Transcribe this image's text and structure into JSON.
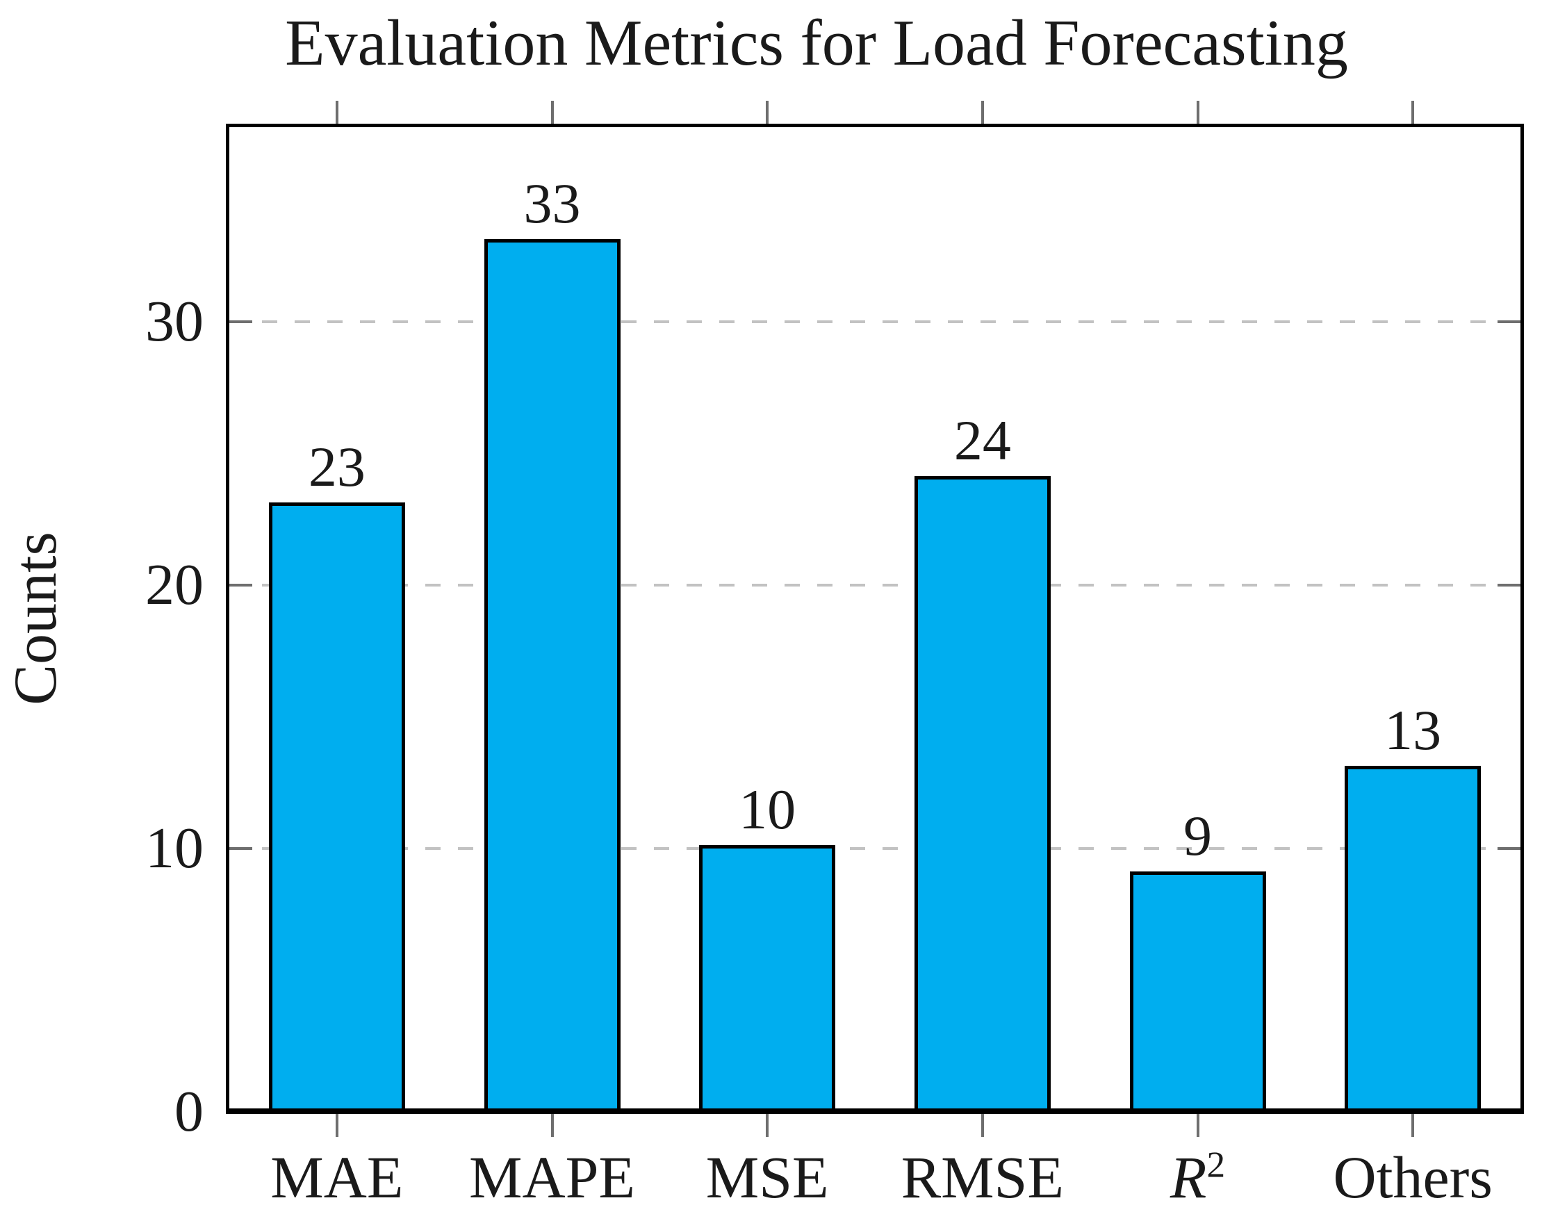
{
  "chart_data": {
    "type": "bar",
    "title": "Evaluation Metrics for Load Forecasting",
    "xlabel": "",
    "ylabel": "Counts",
    "categories": [
      "MAE",
      "MAPE",
      "MSE",
      "RMSE",
      "R²",
      "Others"
    ],
    "values": [
      23,
      33,
      10,
      24,
      9,
      13
    ],
    "bar_labels": [
      "23",
      "33",
      "10",
      "24",
      "9",
      "13"
    ],
    "yticks": [
      0,
      10,
      20,
      30
    ],
    "ylim": [
      0,
      37.2
    ],
    "grid": "horizontal dashed gridlines at y ticks",
    "legend": "none",
    "colors": {
      "bar_fill": "#00AEEF",
      "bar_border": "#000000",
      "grid": "#c2c2c2",
      "tick": "#6e6e6e",
      "frame": "#000000",
      "text": "#1a1a1a",
      "background": "#ffffff"
    }
  }
}
